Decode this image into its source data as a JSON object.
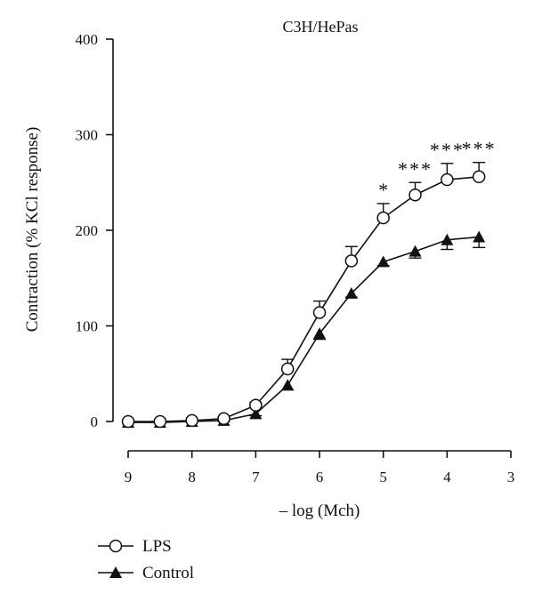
{
  "chart_data": {
    "type": "line",
    "title": "C3H/HePas",
    "xlabel": "– log (Mch)",
    "ylabel": "Contraction (% KCl response)",
    "xlim": [
      9,
      3
    ],
    "ylim": [
      0,
      400
    ],
    "x_reversed": true,
    "x_ticks": [
      "9",
      "8",
      "7",
      "6",
      "5",
      "4",
      "3"
    ],
    "y_ticks": [
      "0",
      "100",
      "200",
      "300",
      "400"
    ],
    "x": [
      9,
      8.5,
      8,
      7.5,
      7,
      6.5,
      6,
      5.5,
      5,
      4.5,
      4,
      3.5
    ],
    "series": [
      {
        "name": "LPS",
        "marker": "open-circle",
        "values": [
          0,
          0,
          1,
          3,
          17,
          55,
          114,
          168,
          213,
          237,
          253,
          256
        ],
        "error": [
          0,
          0,
          0,
          2,
          3,
          10,
          12,
          15,
          15,
          13,
          17,
          15
        ]
      },
      {
        "name": "Control",
        "marker": "filled-triangle",
        "values": [
          -1,
          -1,
          0,
          1,
          8,
          38,
          92,
          134,
          167,
          178,
          190,
          193
        ],
        "error": [
          0,
          0,
          0,
          1,
          2,
          5,
          6,
          4,
          4,
          7,
          10,
          11
        ]
      }
    ],
    "significance": [
      {
        "x": 5,
        "label": "*"
      },
      {
        "x": 4.5,
        "label": "***"
      },
      {
        "x": 4,
        "label": "***"
      },
      {
        "x": 3.5,
        "label": "***"
      }
    ],
    "legend": {
      "position": "bottom-left",
      "entries": [
        "LPS",
        "Control"
      ]
    },
    "grid": false,
    "colors": {
      "line": "#111111",
      "background": "#ffffff"
    }
  }
}
